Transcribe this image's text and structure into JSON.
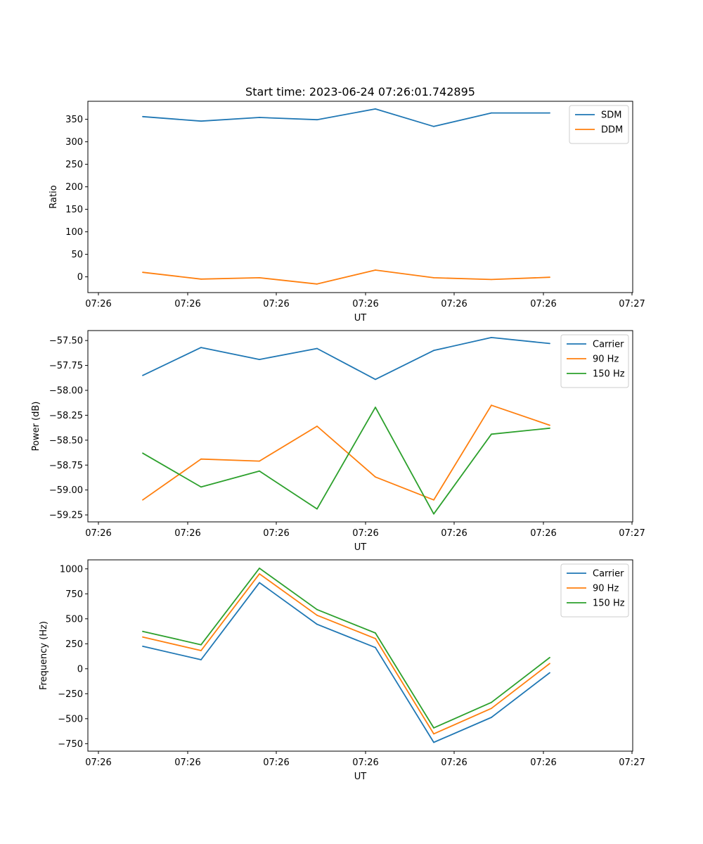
{
  "figure": {
    "title": "Start time: 2023-06-24 07:26:01.742895"
  },
  "chart_data": [
    {
      "type": "line",
      "title": "Start time: 2023-06-24 07:26:01.742895",
      "xlabel": "UT",
      "ylabel": "Ratio",
      "x_tick_labels": [
        "07:26",
        "07:26",
        "07:26",
        "07:26",
        "07:26",
        "07:26",
        "07:26"
      ],
      "x_edge_tick_label": "07:27",
      "ylim": [
        -35,
        390
      ],
      "yticks": [
        0,
        50,
        100,
        150,
        200,
        250,
        300,
        350
      ],
      "y_tick_labels": [
        "0",
        "50",
        "100",
        "150",
        "200",
        "250",
        "300",
        "350"
      ],
      "legend_position": "top-right",
      "grid": false,
      "series": [
        {
          "name": "SDM",
          "color": "#1f77b4",
          "values": [
            356,
            346,
            354,
            349,
            373,
            334,
            364,
            364
          ]
        },
        {
          "name": "DDM",
          "color": "#ff7f0e",
          "values": [
            10,
            -5,
            -2,
            -16,
            15,
            -2,
            -6,
            -1
          ]
        }
      ]
    },
    {
      "type": "line",
      "title": "",
      "xlabel": "UT",
      "ylabel": "Power (dB)",
      "x_tick_labels": [
        "07:26",
        "07:26",
        "07:26",
        "07:26",
        "07:26",
        "07:26",
        "07:26"
      ],
      "x_edge_tick_label": "07:27",
      "ylim": [
        -59.32,
        -57.4
      ],
      "yticks": [
        -59.25,
        -59.0,
        -58.75,
        -58.5,
        -58.25,
        -58.0,
        -57.75,
        -57.5
      ],
      "y_tick_labels": [
        "−59.25",
        "−59.00",
        "−58.75",
        "−58.50",
        "−58.25",
        "−58.00",
        "−57.75",
        "−57.50"
      ],
      "legend_position": "top-right",
      "grid": false,
      "series": [
        {
          "name": "Carrier",
          "color": "#1f77b4",
          "values": [
            -57.85,
            -57.57,
            -57.69,
            -57.58,
            -57.89,
            -57.6,
            -57.47,
            -57.53
          ]
        },
        {
          "name": "90 Hz",
          "color": "#ff7f0e",
          "values": [
            -59.1,
            -58.69,
            -58.71,
            -58.36,
            -58.87,
            -59.1,
            -58.15,
            -58.35
          ]
        },
        {
          "name": "150 Hz",
          "color": "#2ca02c",
          "values": [
            -58.63,
            -58.97,
            -58.81,
            -59.19,
            -58.17,
            -59.24,
            -58.44,
            -58.38
          ]
        }
      ]
    },
    {
      "type": "line",
      "title": "",
      "xlabel": "UT",
      "ylabel": "Frequency (Hz)",
      "x_tick_labels": [
        "07:26",
        "07:26",
        "07:26",
        "07:26",
        "07:26",
        "07:26",
        "07:26"
      ],
      "x_edge_tick_label": "07:27",
      "ylim": [
        -825,
        1090
      ],
      "yticks": [
        -750,
        -500,
        -250,
        0,
        250,
        500,
        750,
        1000
      ],
      "y_tick_labels": [
        "−750",
        "−500",
        "−250",
        "0",
        "250",
        "500",
        "750",
        "1000"
      ],
      "legend_position": "top-right",
      "grid": false,
      "series": [
        {
          "name": "Carrier",
          "color": "#1f77b4",
          "values": [
            225,
            90,
            862,
            445,
            212,
            -737,
            -487,
            -40
          ]
        },
        {
          "name": "90 Hz",
          "color": "#ff7f0e",
          "values": [
            318,
            182,
            950,
            535,
            302,
            -652,
            -397,
            52
          ]
        },
        {
          "name": "150 Hz",
          "color": "#2ca02c",
          "values": [
            374,
            240,
            1006,
            592,
            358,
            -592,
            -337,
            112
          ]
        }
      ]
    }
  ]
}
